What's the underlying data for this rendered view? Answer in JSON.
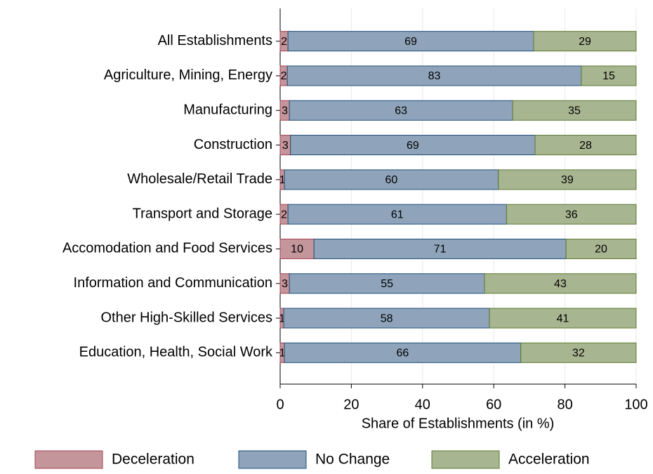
{
  "chart_data": {
    "type": "stacked-barh",
    "x_label": "Share of Establishments (in %)",
    "categories": [
      "All Establishments",
      "Agriculture, Mining, Energy",
      "Manufacturing",
      "Construction",
      "Wholesale/Retail Trade",
      "Transport and Storage",
      "Accomodation and Food Services",
      "Information and Communication",
      "Other High-Skilled Services",
      "Education, Health, Social Work"
    ],
    "series": [
      {
        "name": "Deceleration",
        "color": "#c4959b",
        "values": [
          2.2,
          2.0,
          2.6,
          2.9,
          1.2,
          2.2,
          9.5,
          2.6,
          1.0,
          1.2
        ],
        "value_labels": [
          "2",
          "2",
          "3",
          "3",
          "1",
          "2",
          "10",
          "3",
          "1",
          "1"
        ]
      },
      {
        "name": "No Change",
        "color": "#8fa4bb",
        "values": [
          69.0,
          82.6,
          62.7,
          68.7,
          60.1,
          61.4,
          70.8,
          54.8,
          57.8,
          66.4
        ],
        "value_labels": [
          "69",
          "83",
          "63",
          "69",
          "60",
          "61",
          "71",
          "55",
          "58",
          "66"
        ]
      },
      {
        "name": "Acceleration",
        "color": "#a8b591",
        "values": [
          28.8,
          15.4,
          34.7,
          28.4,
          38.7,
          36.4,
          19.7,
          42.6,
          41.2,
          32.4
        ],
        "value_labels": [
          "29",
          "15",
          "35",
          "28",
          "39",
          "36",
          "20",
          "43",
          "41",
          "32"
        ]
      }
    ],
    "xlim": [
      0,
      100
    ],
    "xticks": [
      0,
      20,
      40,
      60,
      80,
      100
    ],
    "grid": true,
    "legend": "bottom"
  }
}
